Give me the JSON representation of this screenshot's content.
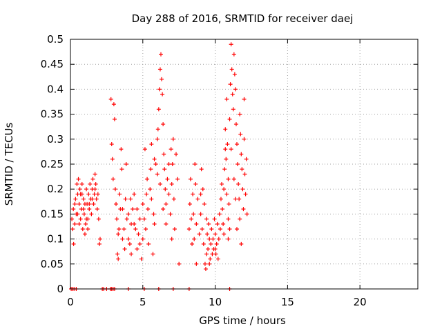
{
  "chart_data": {
    "type": "scatter",
    "title": "Day 288 of 2016, SRMTID for receiver daej",
    "xlabel": "GPS time / hours",
    "ylabel": "SRMTID / TECUs",
    "xlim": [
      0,
      24
    ],
    "ylim": [
      0,
      0.5
    ],
    "xticks": [
      0,
      5,
      10,
      15,
      20
    ],
    "xtick_labels": [
      "0",
      "5",
      "10",
      "15",
      "20"
    ],
    "yticks": [
      0,
      0.05,
      0.1,
      0.15,
      0.2,
      0.25,
      0.3,
      0.35,
      0.4,
      0.45,
      0.5
    ],
    "ytick_labels": [
      "0",
      "0.05",
      "0.1",
      "0.15",
      "0.2",
      "0.25",
      "0.3",
      "0.35",
      "0.4",
      "0.45",
      "0.5"
    ],
    "grid": true,
    "marker": "+",
    "color": "#ff0000",
    "series": [
      {
        "name": "SRMTID",
        "points": [
          [
            0.05,
            0.0
          ],
          [
            0.15,
            0.0
          ],
          [
            0.25,
            0.0
          ],
          [
            0.4,
            0.0
          ],
          [
            2.2,
            0.0
          ],
          [
            2.3,
            0.0
          ],
          [
            2.5,
            0.0
          ],
          [
            2.75,
            0.0
          ],
          [
            2.85,
            0.0
          ],
          [
            2.95,
            0.0
          ],
          [
            3.05,
            0.0
          ],
          [
            4.0,
            0.0
          ],
          [
            5.1,
            0.0
          ],
          [
            6.1,
            0.0
          ],
          [
            7.1,
            0.0
          ],
          [
            8.2,
            0.0
          ],
          [
            11.0,
            0.0
          ],
          [
            0.1,
            0.14
          ],
          [
            0.15,
            0.12
          ],
          [
            0.2,
            0.16
          ],
          [
            0.22,
            0.09
          ],
          [
            0.3,
            0.13
          ],
          [
            0.35,
            0.18
          ],
          [
            0.4,
            0.15
          ],
          [
            0.45,
            0.21
          ],
          [
            0.5,
            0.19
          ],
          [
            0.55,
            0.22
          ],
          [
            0.6,
            0.17
          ],
          [
            0.65,
            0.2
          ],
          [
            0.7,
            0.14
          ],
          [
            0.75,
            0.16
          ],
          [
            0.8,
            0.19
          ],
          [
            0.85,
            0.12
          ],
          [
            0.9,
            0.18
          ],
          [
            0.95,
            0.15
          ],
          [
            1.0,
            0.11
          ],
          [
            1.05,
            0.13
          ],
          [
            1.1,
            0.2
          ],
          [
            1.15,
            0.17
          ],
          [
            1.2,
            0.14
          ],
          [
            1.25,
            0.19
          ],
          [
            1.3,
            0.16
          ],
          [
            1.35,
            0.21
          ],
          [
            1.4,
            0.18
          ],
          [
            1.45,
            0.15
          ],
          [
            1.5,
            0.2
          ],
          [
            1.55,
            0.22
          ],
          [
            1.6,
            0.17
          ],
          [
            1.65,
            0.19
          ],
          [
            1.7,
            0.23
          ],
          [
            1.75,
            0.21
          ],
          [
            1.8,
            0.18
          ],
          [
            1.85,
            0.16
          ],
          [
            1.9,
            0.19
          ],
          [
            1.95,
            0.14
          ],
          [
            2.0,
            0.09
          ],
          [
            2.05,
            0.1
          ],
          [
            0.3,
            0.17
          ],
          [
            0.5,
            0.15
          ],
          [
            0.7,
            0.19
          ],
          [
            0.9,
            0.16
          ],
          [
            1.1,
            0.14
          ],
          [
            1.3,
            0.17
          ],
          [
            1.5,
            0.18
          ],
          [
            1.7,
            0.2
          ],
          [
            0.6,
            0.13
          ],
          [
            0.8,
            0.21
          ],
          [
            1.0,
            0.17
          ],
          [
            1.2,
            0.12
          ],
          [
            2.8,
            0.38
          ],
          [
            2.85,
            0.29
          ],
          [
            2.9,
            0.26
          ],
          [
            2.95,
            0.22
          ],
          [
            3.0,
            0.37
          ],
          [
            3.05,
            0.34
          ],
          [
            3.1,
            0.2
          ],
          [
            3.15,
            0.17
          ],
          [
            3.2,
            0.14
          ],
          [
            3.25,
            0.07
          ],
          [
            3.3,
            0.06
          ],
          [
            3.35,
            0.12
          ],
          [
            3.4,
            0.19
          ],
          [
            3.5,
            0.28
          ],
          [
            3.55,
            0.24
          ],
          [
            3.6,
            0.16
          ],
          [
            3.7,
            0.12
          ],
          [
            3.8,
            0.18
          ],
          [
            3.85,
            0.25
          ],
          [
            3.9,
            0.14
          ],
          [
            4.0,
            0.1
          ],
          [
            4.1,
            0.09
          ],
          [
            4.2,
            0.13
          ],
          [
            4.3,
            0.16
          ],
          [
            4.4,
            0.19
          ],
          [
            4.5,
            0.12
          ],
          [
            4.6,
            0.08
          ],
          [
            4.7,
            0.11
          ],
          [
            4.8,
            0.14
          ],
          [
            4.9,
            0.06
          ],
          [
            5.0,
            0.1
          ],
          [
            3.3,
            0.11
          ],
          [
            3.6,
            0.1
          ],
          [
            4.0,
            0.15
          ],
          [
            4.2,
            0.07
          ],
          [
            4.4,
            0.13
          ],
          [
            4.6,
            0.16
          ],
          [
            4.8,
            0.09
          ],
          [
            3.45,
            0.16
          ],
          [
            3.75,
            0.08
          ],
          [
            4.15,
            0.18
          ],
          [
            5.0,
            0.17
          ],
          [
            5.1,
            0.14
          ],
          [
            5.15,
            0.28
          ],
          [
            5.2,
            0.12
          ],
          [
            5.3,
            0.22
          ],
          [
            5.35,
            0.16
          ],
          [
            5.4,
            0.09
          ],
          [
            5.5,
            0.2
          ],
          [
            5.55,
            0.24
          ],
          [
            5.6,
            0.18
          ],
          [
            5.7,
            0.07
          ],
          [
            5.8,
            0.13
          ],
          [
            5.9,
            0.25
          ],
          [
            6.0,
            0.3
          ],
          [
            6.05,
            0.32
          ],
          [
            6.1,
            0.36
          ],
          [
            6.15,
            0.4
          ],
          [
            6.2,
            0.44
          ],
          [
            6.25,
            0.47
          ],
          [
            6.3,
            0.42
          ],
          [
            6.35,
            0.39
          ],
          [
            6.4,
            0.33
          ],
          [
            6.45,
            0.27
          ],
          [
            6.5,
            0.24
          ],
          [
            6.55,
            0.2
          ],
          [
            6.6,
            0.17
          ],
          [
            6.7,
            0.22
          ],
          [
            6.8,
            0.19
          ],
          [
            6.9,
            0.15
          ],
          [
            7.0,
            0.21
          ],
          [
            7.05,
            0.25
          ],
          [
            7.1,
            0.3
          ],
          [
            7.15,
            0.18
          ],
          [
            7.2,
            0.12
          ],
          [
            7.3,
            0.27
          ],
          [
            7.4,
            0.22
          ],
          [
            7.5,
            0.05
          ],
          [
            5.6,
            0.29
          ],
          [
            5.8,
            0.26
          ],
          [
            6.0,
            0.23
          ],
          [
            6.2,
            0.21
          ],
          [
            6.4,
            0.16
          ],
          [
            6.6,
            0.13
          ],
          [
            6.8,
            0.25
          ],
          [
            7.0,
            0.1
          ],
          [
            5.25,
            0.19
          ],
          [
            5.75,
            0.15
          ],
          [
            6.95,
            0.28
          ],
          [
            8.2,
            0.12
          ],
          [
            8.25,
            0.17
          ],
          [
            8.3,
            0.22
          ],
          [
            8.35,
            0.14
          ],
          [
            8.4,
            0.09
          ],
          [
            8.45,
            0.19
          ],
          [
            8.5,
            0.15
          ],
          [
            8.55,
            0.1
          ],
          [
            8.6,
            0.25
          ],
          [
            8.65,
            0.21
          ],
          [
            8.7,
            0.13
          ],
          [
            8.8,
            0.18
          ],
          [
            8.9,
            0.11
          ],
          [
            9.0,
            0.15
          ],
          [
            9.05,
            0.24
          ],
          [
            9.1,
            0.12
          ],
          [
            9.15,
            0.2
          ],
          [
            9.2,
            0.09
          ],
          [
            9.25,
            0.17
          ],
          [
            9.3,
            0.05
          ],
          [
            9.35,
            0.04
          ],
          [
            9.4,
            0.07
          ],
          [
            9.45,
            0.11
          ],
          [
            9.5,
            0.08
          ],
          [
            9.55,
            0.13
          ],
          [
            9.6,
            0.1
          ],
          [
            9.65,
            0.06
          ],
          [
            9.7,
            0.09
          ],
          [
            9.75,
            0.12
          ],
          [
            9.8,
            0.07
          ],
          [
            9.85,
            0.1
          ],
          [
            9.9,
            0.08
          ],
          [
            9.95,
            0.14
          ],
          [
            10.0,
            0.11
          ],
          [
            10.05,
            0.07
          ],
          [
            10.1,
            0.09
          ],
          [
            10.15,
            0.13
          ],
          [
            10.2,
            0.06
          ],
          [
            10.25,
            0.1
          ],
          [
            10.3,
            0.15
          ],
          [
            10.35,
            0.12
          ],
          [
            10.4,
            0.18
          ],
          [
            10.45,
            0.21
          ],
          [
            10.5,
            0.16
          ],
          [
            10.55,
            0.13
          ],
          [
            10.6,
            0.11
          ],
          [
            10.65,
            0.24
          ],
          [
            10.7,
            0.28
          ],
          [
            10.8,
            0.19
          ],
          [
            10.9,
            0.14
          ],
          [
            11.0,
            0.12
          ],
          [
            8.7,
            0.05
          ],
          [
            9.0,
            0.19
          ],
          [
            9.4,
            0.14
          ],
          [
            9.6,
            0.05
          ],
          [
            10.0,
            0.08
          ],
          [
            10.6,
            0.2
          ],
          [
            10.7,
            0.32
          ],
          [
            10.75,
            0.26
          ],
          [
            10.8,
            0.38
          ],
          [
            10.85,
            0.29
          ],
          [
            10.9,
            0.22
          ],
          [
            10.95,
            0.17
          ],
          [
            11.0,
            0.34
          ],
          [
            11.05,
            0.41
          ],
          [
            11.1,
            0.49
          ],
          [
            11.15,
            0.44
          ],
          [
            11.2,
            0.39
          ],
          [
            11.25,
            0.36
          ],
          [
            11.3,
            0.47
          ],
          [
            11.35,
            0.43
          ],
          [
            11.4,
            0.4
          ],
          [
            11.45,
            0.33
          ],
          [
            11.5,
            0.29
          ],
          [
            11.55,
            0.25
          ],
          [
            11.6,
            0.21
          ],
          [
            11.65,
            0.18
          ],
          [
            11.7,
            0.14
          ],
          [
            11.75,
            0.31
          ],
          [
            11.8,
            0.27
          ],
          [
            11.85,
            0.24
          ],
          [
            11.9,
            0.2
          ],
          [
            11.95,
            0.16
          ],
          [
            12.0,
            0.38
          ],
          [
            12.05,
            0.23
          ],
          [
            12.1,
            0.19
          ],
          [
            12.15,
            0.26
          ],
          [
            12.2,
            0.15
          ],
          [
            11.8,
            0.09
          ],
          [
            11.5,
            0.12
          ],
          [
            11.3,
            0.22
          ],
          [
            11.1,
            0.28
          ],
          [
            10.9,
            0.1
          ],
          [
            11.7,
            0.35
          ],
          [
            12.0,
            0.3
          ],
          [
            11.4,
            0.18
          ]
        ]
      }
    ]
  }
}
